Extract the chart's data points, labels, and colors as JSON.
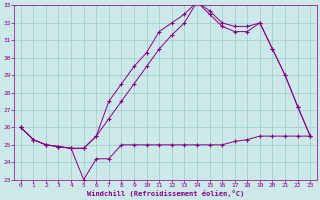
{
  "xlabel": "Windchill (Refroidissement éolien,°C)",
  "bg_color": "#cce8e8",
  "line_color": "#880088",
  "grid_color": "#99cccc",
  "xlim": [
    -0.5,
    23.5
  ],
  "ylim": [
    23,
    33
  ],
  "xticks": [
    0,
    1,
    2,
    3,
    4,
    5,
    6,
    7,
    8,
    9,
    10,
    11,
    12,
    13,
    14,
    15,
    16,
    17,
    18,
    19,
    20,
    21,
    22,
    23
  ],
  "yticks": [
    23,
    24,
    25,
    26,
    27,
    28,
    29,
    30,
    31,
    32,
    33
  ],
  "line1_x": [
    0,
    1,
    2,
    3,
    4,
    5,
    6,
    7,
    8,
    9,
    10,
    11,
    12,
    13,
    14,
    15,
    16,
    17,
    18,
    19,
    20,
    21,
    22,
    23
  ],
  "line1_y": [
    26,
    25.3,
    25,
    24.9,
    24.8,
    23,
    24.2,
    24.2,
    25,
    25,
    25,
    25,
    25,
    25,
    25,
    25,
    25,
    25.2,
    25.3,
    25.5,
    25.5,
    25.5,
    25.5,
    25.5
  ],
  "line2_x": [
    0,
    1,
    2,
    3,
    4,
    5,
    6,
    7,
    8,
    9,
    10,
    11,
    12,
    13,
    14,
    15,
    16,
    17,
    18,
    19,
    20,
    21,
    22,
    23
  ],
  "line2_y": [
    26,
    25.3,
    25,
    24.9,
    24.8,
    24.8,
    25.5,
    27.5,
    28.5,
    29.5,
    30.3,
    31.5,
    32.0,
    32.5,
    33.2,
    32.7,
    32.0,
    31.8,
    31.8,
    32.0,
    30.5,
    29.0,
    27.2,
    25.5
  ],
  "line3_x": [
    0,
    1,
    2,
    3,
    4,
    5,
    6,
    7,
    8,
    9,
    10,
    11,
    12,
    13,
    14,
    15,
    16,
    17,
    18,
    19,
    20,
    21,
    22,
    23
  ],
  "line3_y": [
    26,
    25.3,
    25,
    24.9,
    24.8,
    24.8,
    25.5,
    26.5,
    27.5,
    28.5,
    29.5,
    30.5,
    31.3,
    32.0,
    33.2,
    32.5,
    31.8,
    31.5,
    31.5,
    32.0,
    30.5,
    29.0,
    27.2,
    25.5
  ]
}
